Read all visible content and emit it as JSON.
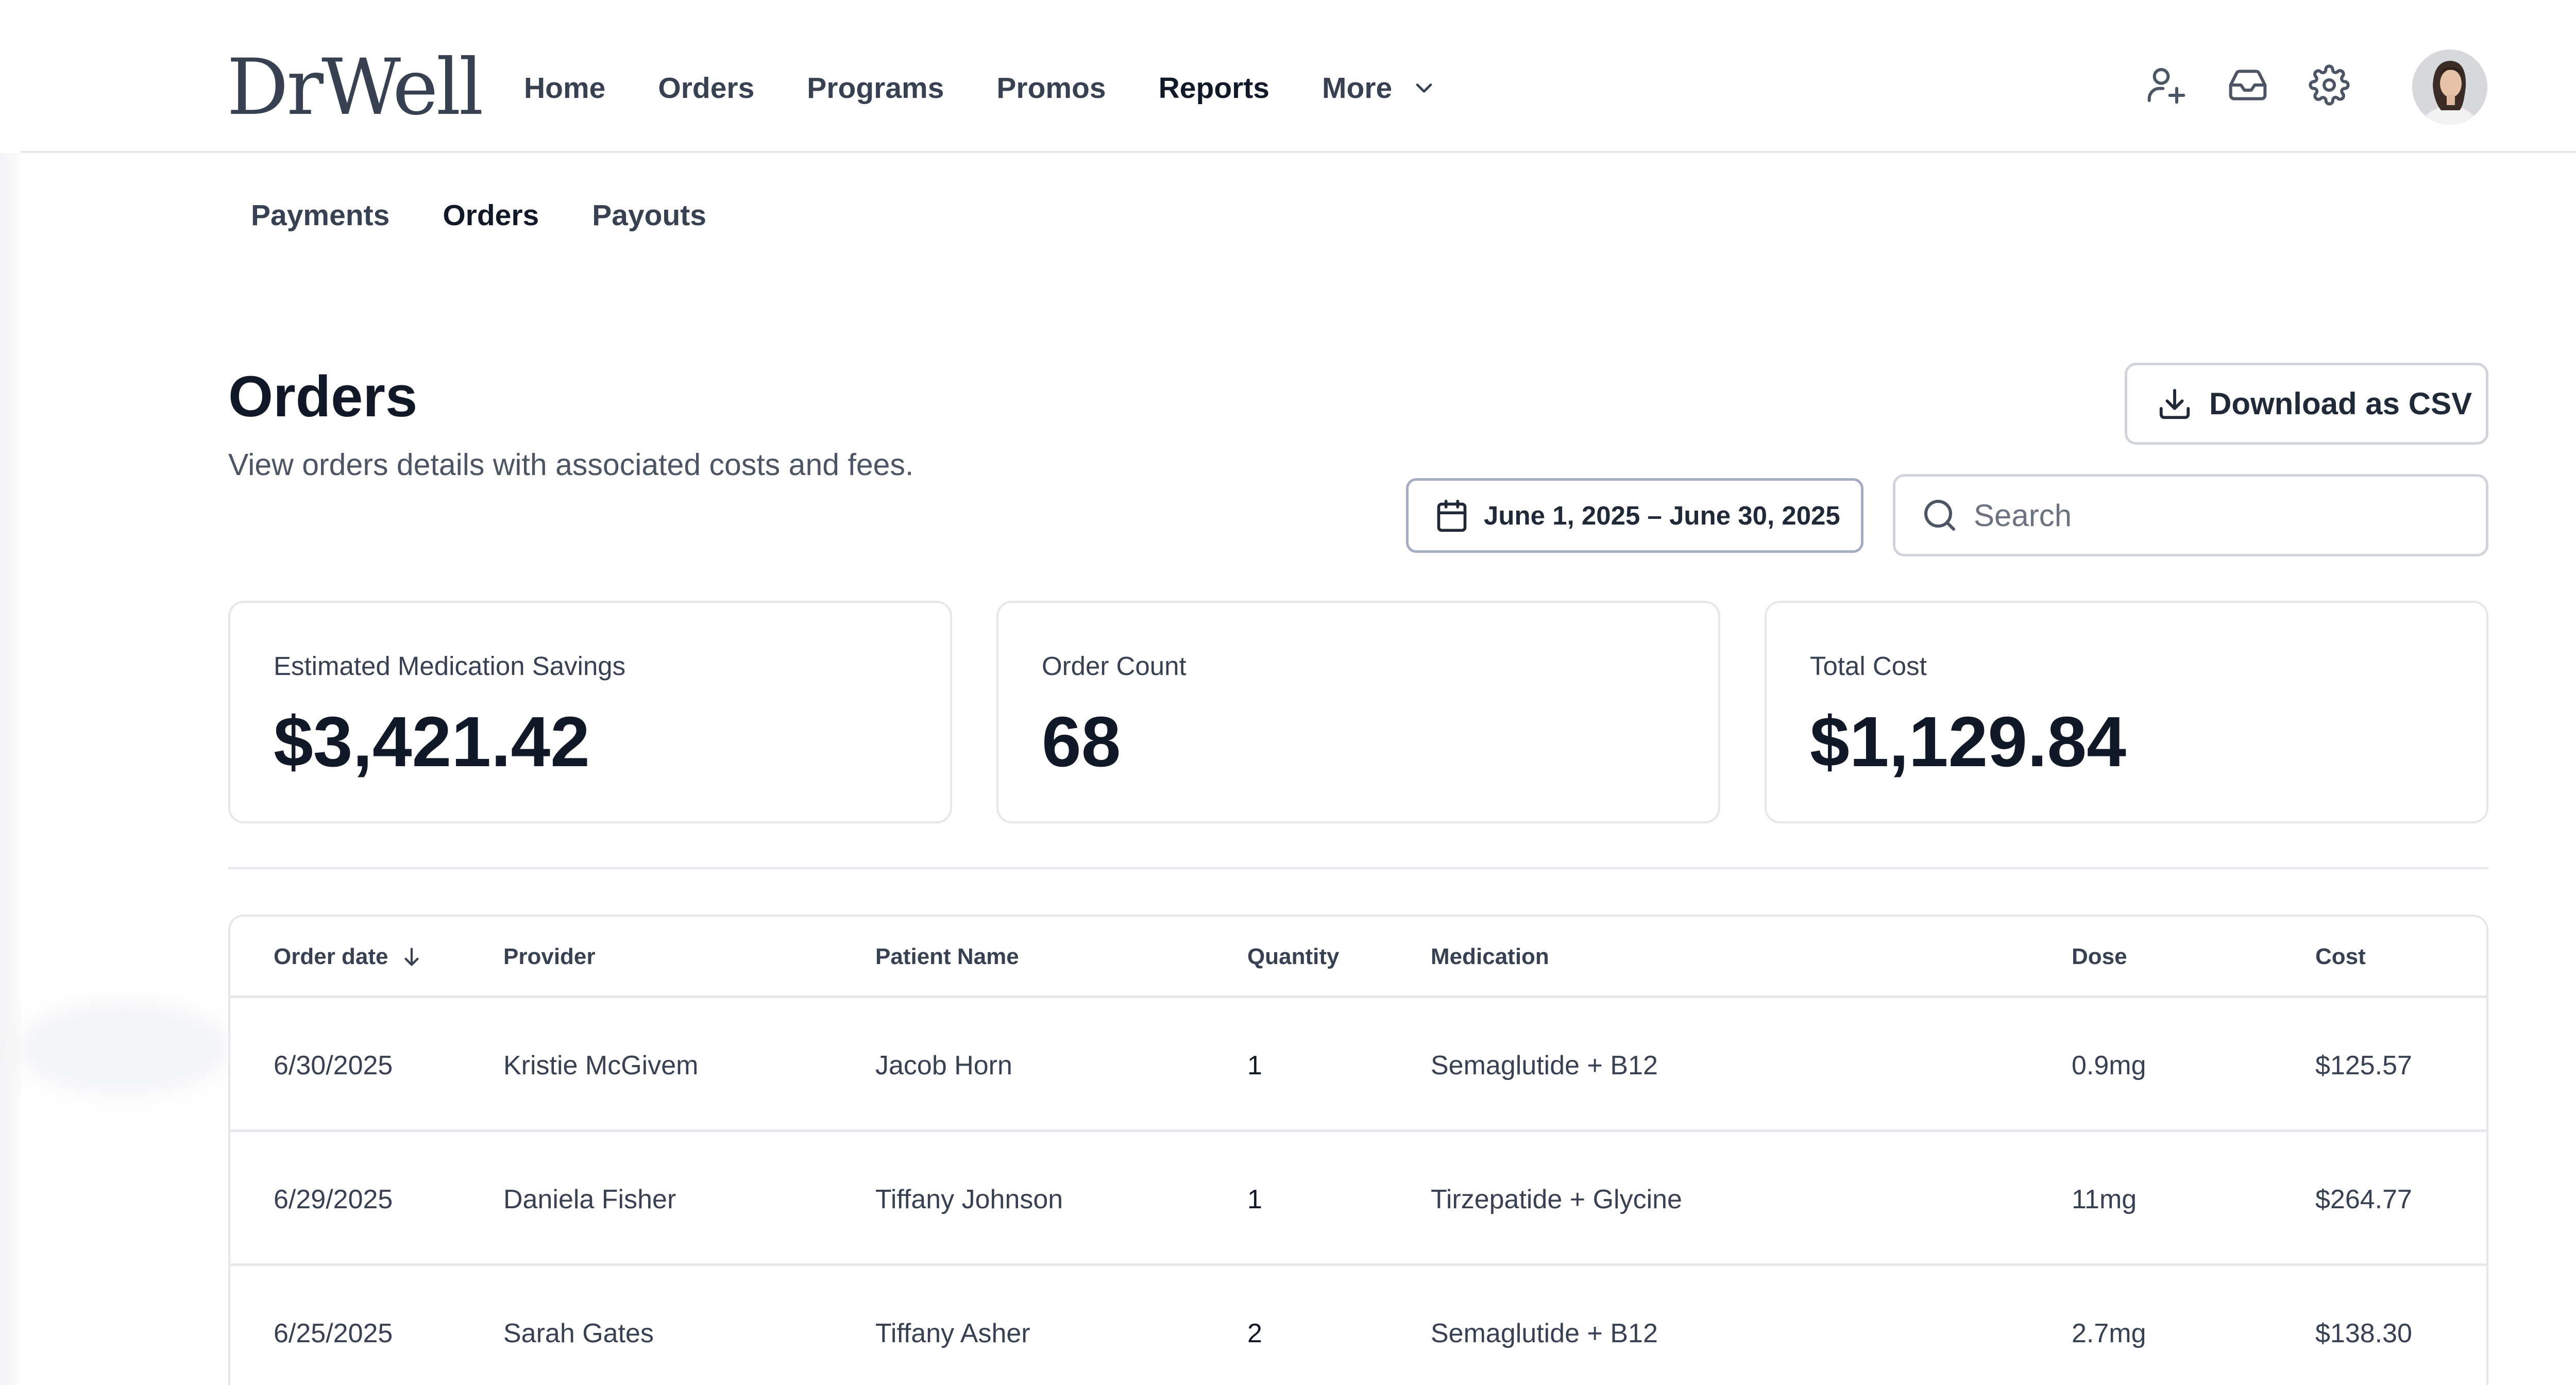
{
  "brand": {
    "logo_text": "DrWell"
  },
  "nav": {
    "items": [
      {
        "label": "Home",
        "active": false
      },
      {
        "label": "Orders",
        "active": false
      },
      {
        "label": "Programs",
        "active": false
      },
      {
        "label": "Promos",
        "active": false
      },
      {
        "label": "Reports",
        "active": true
      }
    ],
    "more_label": "More"
  },
  "header_icons": [
    "add-user-icon",
    "inbox-icon",
    "gear-icon"
  ],
  "subnav": {
    "items": [
      {
        "label": "Payments",
        "active": false
      },
      {
        "label": "Orders",
        "active": true
      },
      {
        "label": "Payouts",
        "active": false
      }
    ]
  },
  "page": {
    "title": "Orders",
    "subtitle": "View orders details with associated costs and fees."
  },
  "actions": {
    "download_label": "Download as CSV",
    "date_range": "June 1, 2025 – June 30, 2025",
    "search_placeholder": "Search",
    "search_value": ""
  },
  "stats": [
    {
      "label": "Estimated Medication Savings",
      "value": "$3,421.42"
    },
    {
      "label": "Order Count",
      "value": "68"
    },
    {
      "label": "Total Cost",
      "value": "$1,129.84"
    }
  ],
  "table": {
    "columns": [
      "Order date",
      "Provider",
      "Patient Name",
      "Quantity",
      "Medication",
      "Dose",
      "Cost"
    ],
    "sorted_column": "Order date",
    "sort_direction": "descending",
    "rows": [
      [
        "6/30/2025",
        "Kristie McGivem",
        "Jacob Horn",
        "1",
        "Semaglutide + B12",
        "0.9mg",
        "$125.57"
      ],
      [
        "6/29/2025",
        "Daniela Fisher",
        "Tiffany Johnson",
        "1",
        "Tirzepatide + Glycine",
        "11mg",
        "$264.77"
      ],
      [
        "6/25/2025",
        "Sarah Gates",
        "Tiffany Asher",
        "2",
        "Semaglutide + B12",
        "2.7mg",
        "$138.30"
      ]
    ]
  },
  "colors": {
    "text_primary": "#111827",
    "text_secondary": "#374151",
    "border": "#e5e7eb",
    "date_border": "#a5adc2"
  }
}
